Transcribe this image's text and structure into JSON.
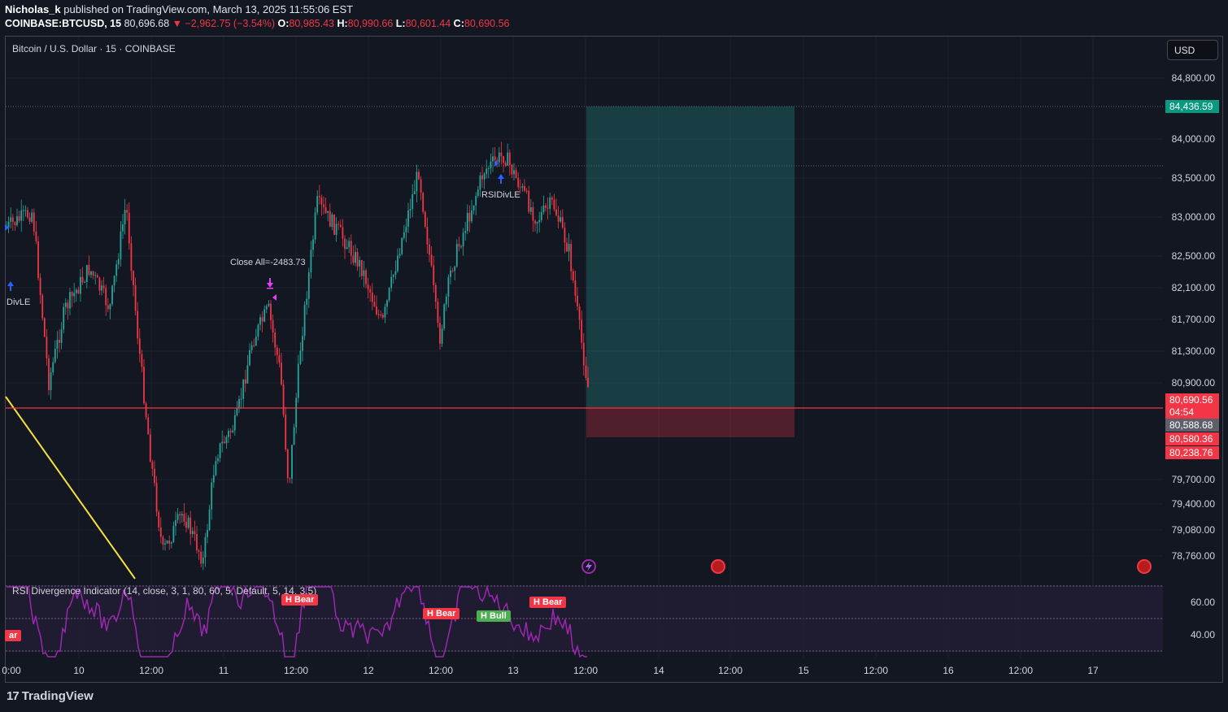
{
  "header": {
    "author": "Nicholas_k",
    "published": "published on TradingView.com, March 13, 2025 11:55:06 EST",
    "symbol": "COINBASE:BTCUSD, 15",
    "last": "80,696.68",
    "change": "▼ −2,962.75 (−3.54%)",
    "o_label": "O:",
    "o": "80,985.43",
    "h_label": "H:",
    "h": "80,990.66",
    "l_label": "L:",
    "l": "80,601.44",
    "c_label": "C:",
    "c": "80,690.56"
  },
  "chart": {
    "title": "Bitcoin / U.S. Dollar · 15 · COINBASE",
    "currency_button": "USD",
    "price_axis": [
      "84,800.00",
      "84,000.00",
      "83,500.00",
      "83,000.00",
      "82,500.00",
      "82,100.00",
      "81,700.00",
      "81,300.00",
      "80,900.00",
      "79,700.00",
      "79,400.00",
      "79,080.00",
      "78,760.00"
    ],
    "price_tags": {
      "target": "84,436.59",
      "current": "80,690.56",
      "countdown": "04:54",
      "p2": "80,588.68",
      "p3": "80,580.36",
      "stop": "80,238.76"
    },
    "annotations": {
      "close_all": "Close All=-2483.73",
      "rsidivle_1": "RSIDivLE",
      "rsidivle_0": "DivLE"
    },
    "colors": {
      "bull": "#26a69a",
      "bear": "#f23645",
      "background": "#131722",
      "rsi_line": "#9c27b0",
      "trendline": "#f7e13a"
    }
  },
  "rsi": {
    "title": "RSI Divergence Indicator (14, close, 3, 1, 80, 60, 5, Default, 5, 14, 3.5)",
    "axis": [
      "60.00",
      "40.00"
    ],
    "badges": [
      {
        "label": "H Bear",
        "type": "bear"
      },
      {
        "label": "H Bear",
        "type": "bear"
      },
      {
        "label": "H Bull",
        "type": "bull"
      },
      {
        "label": "H Bear",
        "type": "bear"
      },
      {
        "label": "ar",
        "type": "bear"
      }
    ]
  },
  "time_axis": [
    "0:00",
    "10",
    "12:00",
    "11",
    "12:00",
    "12",
    "12:00",
    "13",
    "12:00",
    "14",
    "12:00",
    "15",
    "12:00",
    "16",
    "12:00",
    "17"
  ],
  "footer": {
    "logo_mark": "17",
    "logo_text": "TradingView"
  }
}
